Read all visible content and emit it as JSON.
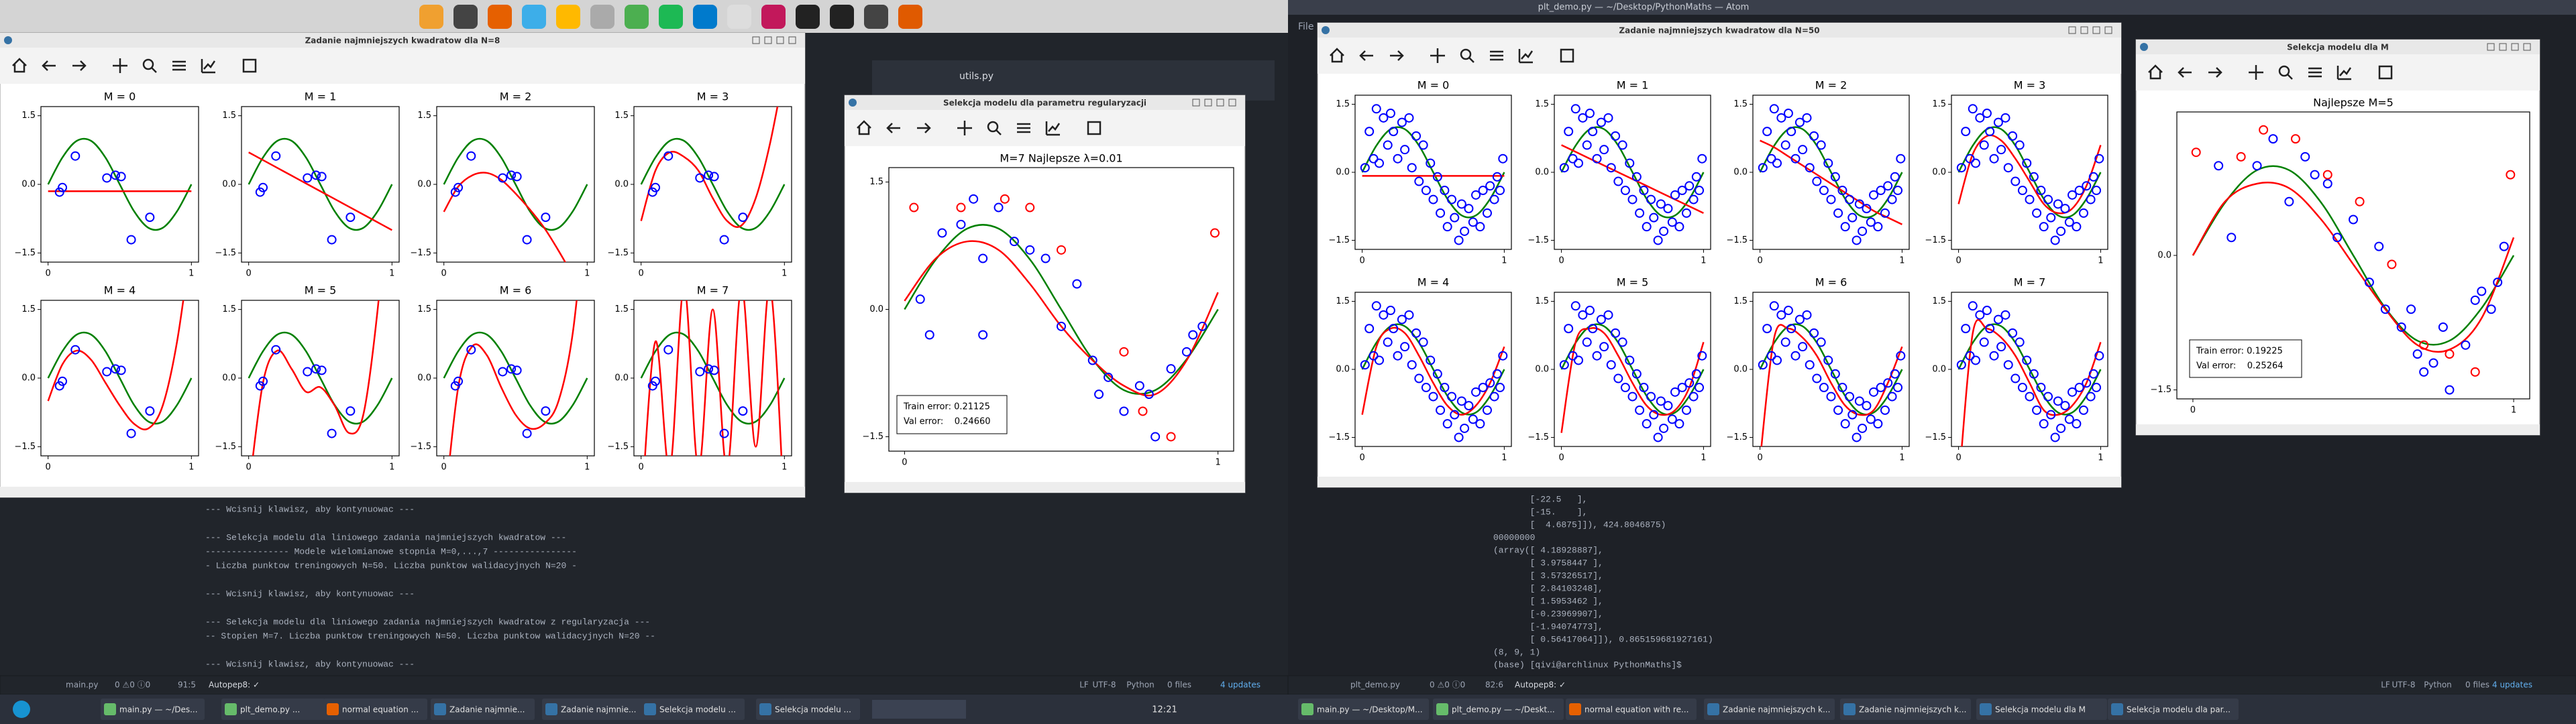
{
  "atom": {
    "title": "plt_demo.py — ~/Desktop/PythonMaths — Atom",
    "menu": "File",
    "tab": "utils.py"
  },
  "figures": [
    {
      "title": "Zadanie najmniejszych kwadratow dla N=8",
      "grid_x": [
        0,
        0.1,
        0.2,
        0.3,
        0.4,
        0.5,
        0.6,
        0.7,
        0.8,
        0.9,
        1
      ],
      "true_curve": [
        0,
        0.588,
        0.951,
        0.951,
        0.588,
        0,
        -0.588,
        -0.951,
        -0.951,
        -0.588,
        0
      ],
      "points": {
        "x": [
          0.08,
          0.1,
          0.19,
          0.41,
          0.47,
          0.51,
          0.58,
          0.71
        ],
        "y": [
          -0.17,
          -0.07,
          0.62,
          0.14,
          0.2,
          0.17,
          -1.21,
          -0.72
        ]
      },
      "xlim": [
        -0.05,
        1.05
      ],
      "ylim": [
        -1.7,
        1.7
      ],
      "xticks": [
        0,
        1
      ],
      "yticks": [
        1.5,
        {
          "value": 0,
          "label": "0.0"
        },
        {
          "value": -1.5,
          "label": "−1.5"
        }
      ],
      "colors": {
        "points": "#0000ff",
        "fit": "#ff0000",
        "true": "#008000"
      },
      "subplots": [
        {
          "title": "M = 0",
          "fit": [
            -0.15,
            -0.15,
            -0.15,
            -0.15,
            -0.15,
            -0.15,
            -0.15,
            -0.15,
            -0.15,
            -0.15,
            -0.15
          ]
        },
        {
          "title": "M = 1",
          "fit": [
            0.7,
            0.53,
            0.36,
            0.19,
            0.02,
            -0.15,
            -0.32,
            -0.49,
            -0.66,
            -0.83,
            -1.0
          ]
        },
        {
          "title": "M = 2",
          "fit": [
            -0.6,
            -0.05,
            0.2,
            0.25,
            0.1,
            -0.2,
            -0.55,
            -0.95,
            -1.45,
            -2.0,
            -2.6
          ]
        },
        {
          "title": "M = 3",
          "fit": [
            -0.8,
            0.3,
            0.7,
            0.6,
            0.3,
            -0.3,
            -0.8,
            -0.9,
            -0.3,
            0.9,
            2.5
          ]
        },
        {
          "title": "M = 4",
          "fit": [
            -0.5,
            0.3,
            0.6,
            0.4,
            -0.1,
            -0.6,
            -1.0,
            -1.1,
            -0.6,
            0.8,
            3.0
          ]
        },
        {
          "title": "M = 5",
          "fit": [
            -2.5,
            -0.1,
            0.6,
            0.2,
            -0.3,
            -0.2,
            -0.6,
            -1.2,
            -0.8,
            1.5,
            5.0
          ]
        },
        {
          "title": "M = 6",
          "fit": [
            -3.0,
            -0.2,
            0.7,
            0.5,
            -0.2,
            -0.8,
            -1.1,
            -1.0,
            -0.5,
            1.0,
            4.0
          ]
        },
        {
          "title": "M = 7",
          "fit": [
            -3.0,
            0.8,
            -2.0,
            2.0,
            -2.0,
            1.5,
            -2.0,
            2.0,
            -1.5,
            2.0,
            -3.0
          ]
        }
      ]
    },
    {
      "title": "Selekcja modelu dla parametru regularyzacji",
      "plot_title": "M=7    Najlepsze λ=0.01",
      "grid_x": [
        0,
        0.1,
        0.2,
        0.3,
        0.4,
        0.5,
        0.6,
        0.7,
        0.8,
        0.9,
        1
      ],
      "true_curve": [
        0,
        0.588,
        0.951,
        0.951,
        0.588,
        0,
        -0.588,
        -0.951,
        -0.951,
        -0.588,
        0
      ],
      "fit": [
        0.1,
        0.6,
        0.8,
        0.7,
        0.3,
        -0.2,
        -0.6,
        -0.9,
        -1.0,
        -0.6,
        0.2
      ],
      "train": {
        "x": [
          0.05,
          0.08,
          0.12,
          0.18,
          0.22,
          0.25,
          0.25,
          0.3,
          0.35,
          0.4,
          0.45,
          0.5,
          0.55,
          0.6,
          0.62,
          0.65,
          0.7,
          0.75,
          0.78,
          0.8,
          0.85,
          0.9,
          0.92,
          0.95
        ],
        "y": [
          0.12,
          -0.3,
          0.9,
          1.0,
          1.3,
          0.6,
          -0.3,
          1.2,
          0.8,
          0.7,
          0.6,
          -0.2,
          0.3,
          -0.6,
          -1.0,
          -0.8,
          -1.2,
          -0.9,
          -1.0,
          -1.5,
          -0.7,
          -0.5,
          -0.3,
          -0.2
        ]
      },
      "val": {
        "x": [
          0.03,
          0.18,
          0.32,
          0.4,
          0.5,
          0.7,
          0.76,
          0.85,
          0.99
        ],
        "y": [
          1.2,
          1.2,
          1.3,
          1.2,
          0.7,
          -0.5,
          -1.2,
          -1.5,
          0.9
        ]
      },
      "legend": [
        "Train error: 0.21125",
        "Val error:    0.24660"
      ],
      "xlim": [
        -0.05,
        1.05
      ],
      "ylim": [
        -1.67,
        1.67
      ],
      "xticks": [
        0,
        1
      ],
      "yticks": [
        1.5,
        {
          "value": 0,
          "label": "0.0"
        },
        {
          "value": -1.5,
          "label": "−1.5"
        }
      ],
      "colors": {
        "train": "#0000ff",
        "val": "#ff0000",
        "fit": "#ff0000",
        "true": "#008000"
      }
    },
    {
      "title": "Zadanie najmniejszych kwadratow dla N=50",
      "grid_x": [
        0,
        0.1,
        0.2,
        0.3,
        0.4,
        0.5,
        0.6,
        0.7,
        0.8,
        0.9,
        1
      ],
      "true_curve": [
        0,
        0.588,
        0.951,
        0.951,
        0.588,
        0,
        -0.588,
        -0.951,
        -0.951,
        -0.588,
        0
      ],
      "points": {
        "x": [
          0.02,
          0.05,
          0.08,
          0.1,
          0.12,
          0.15,
          0.18,
          0.2,
          0.22,
          0.25,
          0.28,
          0.3,
          0.33,
          0.35,
          0.38,
          0.4,
          0.43,
          0.45,
          0.48,
          0.5,
          0.53,
          0.55,
          0.58,
          0.6,
          0.63,
          0.65,
          0.68,
          0.7,
          0.72,
          0.75,
          0.78,
          0.8,
          0.83,
          0.85,
          0.88,
          0.9,
          0.93,
          0.95,
          0.97,
          0.99
        ],
        "y": [
          0.1,
          0.9,
          0.3,
          1.4,
          0.2,
          1.2,
          0.6,
          1.3,
          0.9,
          0.3,
          1.1,
          0.5,
          1.2,
          0.1,
          0.8,
          -0.2,
          0.6,
          -0.4,
          0.2,
          -0.6,
          -0.1,
          -0.9,
          -0.4,
          -1.2,
          -0.6,
          -1.0,
          -1.5,
          -0.7,
          -1.3,
          -0.8,
          -1.1,
          -0.5,
          -1.2,
          -0.4,
          -0.9,
          -0.3,
          -0.6,
          -0.1,
          -0.4,
          0.3
        ]
      },
      "xlim": [
        -0.05,
        1.05
      ],
      "ylim": [
        -1.7,
        1.7
      ],
      "xticks": [
        0,
        1
      ],
      "yticks": [
        1.5,
        {
          "value": 0,
          "label": "0.0"
        },
        {
          "value": -1.5,
          "label": "−1.5"
        }
      ],
      "colors": {
        "points": "#0000ff",
        "fit": "#ff0000",
        "true": "#008000"
      },
      "subplots": [
        {
          "title": "M = 0",
          "fit": [
            -0.08,
            -0.08,
            -0.08,
            -0.08,
            -0.08,
            -0.08,
            -0.08,
            -0.08,
            -0.08,
            -0.08,
            -0.08
          ]
        },
        {
          "title": "M = 1",
          "fit": [
            0.6,
            0.45,
            0.3,
            0.15,
            0,
            -0.15,
            -0.3,
            -0.45,
            -0.6,
            -0.75,
            -0.9
          ]
        },
        {
          "title": "M = 2",
          "fit": [
            0.7,
            0.55,
            0.35,
            0.15,
            -0.05,
            -0.25,
            -0.45,
            -0.65,
            -0.85,
            -1.0,
            -1.15
          ]
        },
        {
          "title": "M = 3",
          "fit": [
            -0.7,
            0.4,
            0.8,
            0.7,
            0.3,
            -0.2,
            -0.7,
            -0.9,
            -0.8,
            -0.3,
            0.6
          ]
        },
        {
          "title": "M = 4",
          "fit": [
            -1.0,
            0.5,
            0.9,
            0.8,
            0.3,
            -0.3,
            -0.8,
            -1.0,
            -0.8,
            -0.3,
            0.5
          ]
        },
        {
          "title": "M = 5",
          "fit": [
            -1.4,
            0.6,
            0.9,
            0.8,
            0.3,
            -0.3,
            -0.8,
            -1.0,
            -0.9,
            -0.4,
            0.6
          ]
        },
        {
          "title": "M = 6",
          "fit": [
            -2.0,
            0.7,
            0.9,
            0.7,
            0.3,
            -0.3,
            -0.8,
            -1.0,
            -0.9,
            -0.3,
            0.5
          ]
        },
        {
          "title": "M = 7",
          "fit": [
            -2.6,
            0.8,
            0.9,
            0.7,
            0.3,
            -0.3,
            -0.9,
            -1.0,
            -0.8,
            -0.3,
            0.6
          ]
        }
      ]
    },
    {
      "title": "Selekcja modelu dla M",
      "plot_title": "Najlepsze M=5",
      "grid_x": [
        0,
        0.1,
        0.2,
        0.3,
        0.4,
        0.5,
        0.6,
        0.7,
        0.8,
        0.9,
        1
      ],
      "true_curve": [
        0,
        0.588,
        0.951,
        0.951,
        0.588,
        0,
        -0.588,
        -0.951,
        -0.951,
        -0.588,
        0
      ],
      "fit": [
        0.0,
        0.6,
        0.8,
        0.75,
        0.4,
        -0.1,
        -0.6,
        -1.0,
        -1.05,
        -0.7,
        0.2
      ],
      "train": {
        "x": [
          0.08,
          0.12,
          0.2,
          0.25,
          0.3,
          0.35,
          0.38,
          0.42,
          0.45,
          0.5,
          0.55,
          0.58,
          0.6,
          0.65,
          0.68,
          0.7,
          0.72,
          0.75,
          0.78,
          0.8,
          0.85,
          0.88,
          0.9,
          0.93,
          0.95,
          0.97
        ],
        "y": [
          1.0,
          0.2,
          1.0,
          1.3,
          0.6,
          1.1,
          0.9,
          0.8,
          0.2,
          0.4,
          -0.3,
          0.1,
          -0.6,
          -0.8,
          -0.6,
          -1.1,
          -1.3,
          -1.2,
          -0.8,
          -1.5,
          -1.0,
          -0.5,
          -0.4,
          -0.6,
          -0.3,
          0.1
        ]
      },
      "val": {
        "x": [
          0.01,
          0.15,
          0.22,
          0.32,
          0.42,
          0.52,
          0.62,
          0.72,
          0.8,
          0.88,
          0.99
        ],
        "y": [
          1.15,
          1.1,
          1.4,
          1.3,
          0.9,
          0.6,
          -0.1,
          -1.0,
          -1.1,
          -1.3,
          0.9
        ]
      },
      "legend": [
        "Train error: 0.19225",
        "Val error:    0.25264"
      ],
      "xlim": [
        -0.05,
        1.05
      ],
      "ylim": [
        -1.6,
        1.6
      ],
      "xticks": [
        0,
        1
      ],
      "yticks": [
        {
          "value": 0,
          "label": "0.0"
        },
        {
          "value": -1.5,
          "label": "−1.5"
        }
      ],
      "colors": {
        "train": "#0000ff",
        "val": "#ff0000",
        "fit": "#ff0000",
        "true": "#008000"
      }
    }
  ],
  "terminals": [
    {
      "blocks": [
        [
          "--- Wcisnij klawisz, aby kontynuowac ---"
        ],
        [
          "--- Selekcja modelu dla liniowego zadania najmniejszych kwadratow ---",
          "---------------- Modele wielomianowe stopnia M=0,...,7 ----------------",
          "- Liczba punktow treningowych N=50. Liczba punktow walidacyjnych N=20 -"
        ],
        [
          "--- Wcisnij klawisz, aby kontynuowac ---"
        ],
        [
          "--- Selekcja modelu dla liniowego zadania najmniejszych kwadratow z regularyzacja ---",
          "-- Stopien M=7. Liczba punktow treningowych N=50. Liczba punktow walidacyjnych N=20 --"
        ],
        [
          "--- Wcisnij klawisz, aby kontynuowac ---"
        ]
      ]
    },
    {
      "blocks": [
        [
          "       [-22.5   ],",
          "       [-15.    ],",
          "       [  4.6875]]), 424.8046875)",
          "00000000",
          "(array([ 4.18928887],",
          "       [ 3.9758447 ],",
          "       [ 3.57326517],",
          "       [ 2.84103248],",
          "       [ 1.5953462 ],",
          "       [-0.23969907],",
          "       [-1.94074773],",
          "       [ 0.56417064]]), 0.865159681927161)",
          "(8, 9, 1)",
          "(base) [qivi@archlinux PythonMaths]$"
        ]
      ]
    }
  ],
  "status_bars": [
    {
      "left": [
        "main.py",
        "0 ⚠0 ⓘ0",
        "91:5",
        "Autopep8: ✓"
      ],
      "right": [
        "LF",
        "UTF-8",
        "Python",
        "0 files",
        "4 updates"
      ]
    },
    {
      "left": [
        "plt_demo.py",
        "0 ⚠0 ⓘ0",
        "82:6",
        "Autopep8: ✓"
      ],
      "right": [
        "LF",
        "UTF-8",
        "Python",
        "0 files",
        "4 updates"
      ]
    }
  ],
  "taskbars": [
    {
      "tasks": [
        "main.py — ~/Des...",
        "plt_demo.py ...",
        "normal equation ...",
        "Zadanie najmnie...",
        "Zadanie najmnie...",
        "Selekcja modelu ...",
        "Selekcja modelu ..."
      ],
      "clock": "12:21"
    },
    {
      "tasks": [
        "main.py — ~/Desktop/M...",
        "plt_demo.py — ~/Deskt...",
        "normal equation with re...",
        "Zadanie najmniejszych k...",
        "Zadanie najmniejszych k...",
        "Selekcja modelu dla M",
        "Selekcja modelu dla par..."
      ]
    }
  ]
}
